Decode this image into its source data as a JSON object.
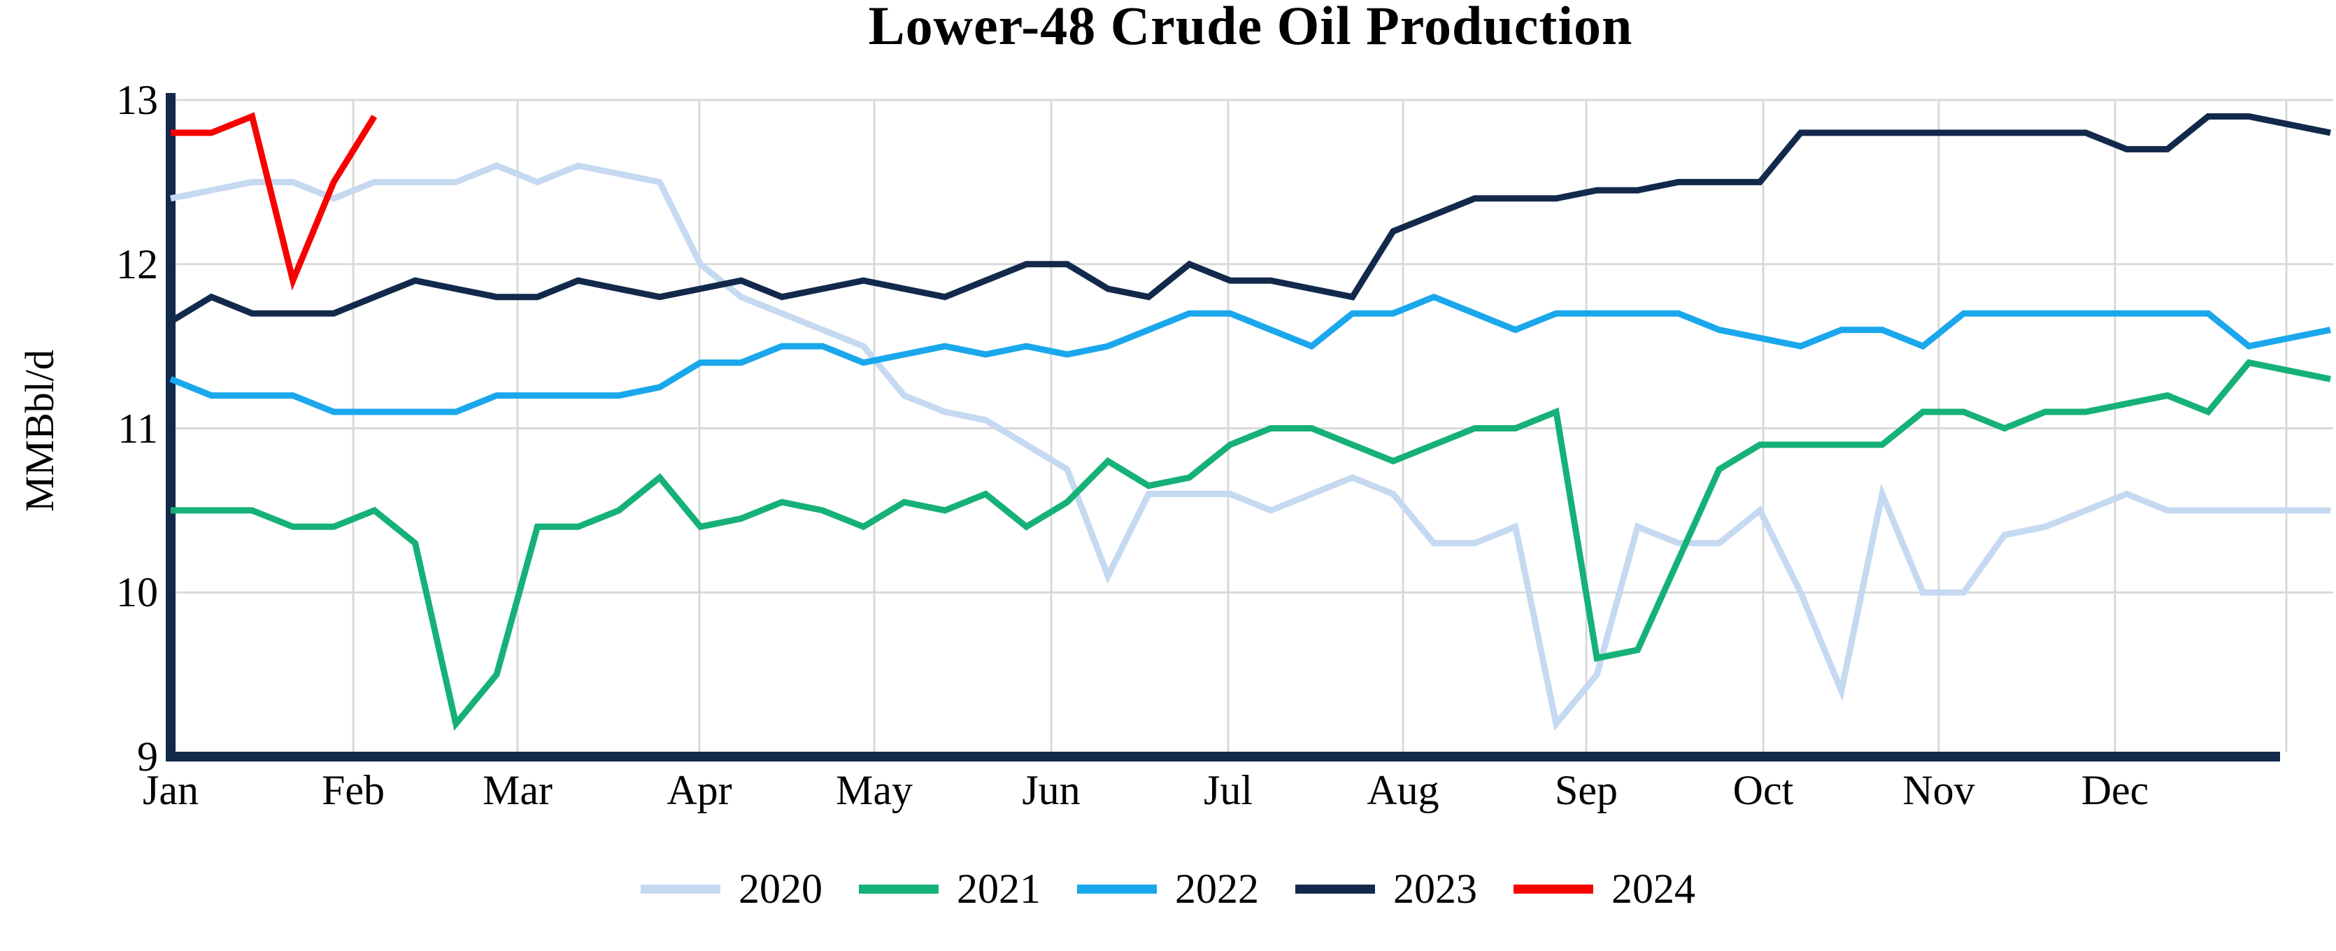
{
  "title": "Lower-48 Crude Oil Production",
  "y_axis": {
    "label": "MMBbl/d",
    "tick_labels": [
      "13",
      "12",
      "11",
      "10",
      "9"
    ]
  },
  "x_axis": {
    "tick_labels": [
      "Jan",
      "Feb",
      "Mar",
      "Apr",
      "May",
      "Jun",
      "Jul",
      "Aug",
      "Sep",
      "Oct",
      "Nov",
      "Dec"
    ]
  },
  "legend": {
    "items": [
      "2020",
      "2021",
      "2022",
      "2023",
      "2024"
    ]
  },
  "colors": {
    "grid": "#D9D9D9",
    "axis": "#12294B",
    "background": "#FFFFFF",
    "series_2020": "#C5D9F1",
    "series_2021": "#15B177",
    "series_2022": "#1AA7EC",
    "series_2023": "#12294B",
    "series_2024": "#F60000"
  },
  "chart_data": {
    "type": "line",
    "title": "Lower-48 Crude Oil Production",
    "xlabel": "",
    "ylabel": "MMBbl/d",
    "ylim": [
      9,
      13
    ],
    "yticks": [
      13,
      12,
      11,
      10,
      9
    ],
    "x_categories": [
      "Jan",
      "Feb",
      "Mar",
      "Apr",
      "May",
      "Jun",
      "Jul",
      "Aug",
      "Sep",
      "Oct",
      "Nov",
      "Dec"
    ],
    "cadence": "weekly values in MMBbl/d, Jan through Dec",
    "grid": true,
    "legend_position": "bottom",
    "series": [
      {
        "name": "2020",
        "color": "#C5D9F1",
        "values": [
          12.4,
          12.45,
          12.5,
          12.5,
          12.4,
          12.5,
          12.5,
          12.5,
          12.6,
          12.5,
          12.6,
          12.55,
          12.5,
          12.0,
          11.8,
          11.7,
          11.6,
          11.5,
          11.2,
          11.1,
          11.05,
          10.9,
          10.75,
          10.1,
          10.6,
          10.6,
          10.6,
          10.5,
          10.6,
          10.7,
          10.6,
          10.3,
          10.3,
          10.4,
          9.2,
          9.5,
          10.4,
          10.3,
          10.3,
          10.5,
          10.0,
          9.4,
          10.6,
          10.0,
          10.0,
          10.35,
          10.4,
          10.5,
          10.6,
          10.5,
          10.5,
          10.5,
          10.5,
          10.5
        ]
      },
      {
        "name": "2021",
        "color": "#15B177",
        "values": [
          10.5,
          10.5,
          10.5,
          10.4,
          10.4,
          10.5,
          10.3,
          9.2,
          9.5,
          10.4,
          10.4,
          10.5,
          10.7,
          10.4,
          10.45,
          10.55,
          10.5,
          10.4,
          10.55,
          10.5,
          10.6,
          10.4,
          10.55,
          10.8,
          10.65,
          10.7,
          10.9,
          11.0,
          11.0,
          10.9,
          10.8,
          10.9,
          11.0,
          11.0,
          11.1,
          9.6,
          9.65,
          10.2,
          10.75,
          10.9,
          10.9,
          10.9,
          10.9,
          11.1,
          11.1,
          11.0,
          11.1,
          11.1,
          11.15,
          11.2,
          11.1,
          11.4,
          11.35,
          11.3
        ]
      },
      {
        "name": "2022",
        "color": "#1AA7EC",
        "values": [
          11.3,
          11.2,
          11.2,
          11.2,
          11.1,
          11.1,
          11.1,
          11.1,
          11.2,
          11.2,
          11.2,
          11.2,
          11.25,
          11.4,
          11.4,
          11.5,
          11.5,
          11.4,
          11.45,
          11.5,
          11.45,
          11.5,
          11.45,
          11.5,
          11.6,
          11.7,
          11.7,
          11.6,
          11.5,
          11.7,
          11.7,
          11.8,
          11.7,
          11.6,
          11.7,
          11.7,
          11.7,
          11.7,
          11.6,
          11.55,
          11.5,
          11.6,
          11.6,
          11.5,
          11.7,
          11.7,
          11.7,
          11.7,
          11.7,
          11.7,
          11.7,
          11.5,
          11.55,
          11.6
        ]
      },
      {
        "name": "2023",
        "color": "#12294B",
        "values": [
          11.65,
          11.8,
          11.7,
          11.7,
          11.7,
          11.8,
          11.9,
          11.85,
          11.8,
          11.8,
          11.9,
          11.85,
          11.8,
          11.85,
          11.9,
          11.8,
          11.85,
          11.9,
          11.85,
          11.8,
          11.9,
          12.0,
          12.0,
          11.85,
          11.8,
          12.0,
          11.9,
          11.9,
          11.85,
          11.8,
          12.2,
          12.3,
          12.4,
          12.4,
          12.4,
          12.45,
          12.45,
          12.5,
          12.5,
          12.5,
          12.8,
          12.8,
          12.8,
          12.8,
          12.8,
          12.8,
          12.8,
          12.8,
          12.7,
          12.7,
          12.9,
          12.9,
          12.85,
          12.8
        ]
      },
      {
        "name": "2024",
        "color": "#F60000",
        "values": [
          12.8,
          12.8,
          12.9,
          11.9,
          12.5,
          12.9
        ]
      }
    ]
  }
}
